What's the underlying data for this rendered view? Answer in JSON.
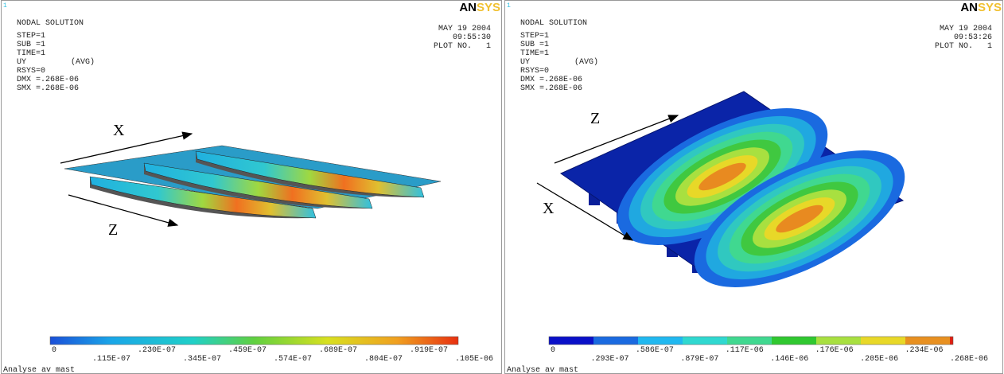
{
  "panels": [
    {
      "window_number": "1",
      "title": "NODAL SOLUTION",
      "lines": [
        "STEP=1",
        "SUB =1",
        "TIME=1"
      ],
      "result": "UY",
      "avg": "(AVG)",
      "lines2": [
        "RSYS=0",
        "DMX =.268E-06",
        "SMX =.268E-06"
      ],
      "logo": {
        "an": "AN",
        "sys": "SYS"
      },
      "date": "MAY 19 2004",
      "time": "09:55:30",
      "plot_no": "PLOT NO.   1",
      "axis_labels": [
        "X",
        "Z"
      ],
      "legend": [
        "0",
        ".115E-07",
        ".230E-07",
        ".345E-07",
        ".459E-07",
        ".574E-07",
        ".689E-07",
        ".804E-07",
        ".919E-07",
        ".105E-06"
      ],
      "footer": "Analyse av mast"
    },
    {
      "window_number": "1",
      "title": "NODAL SOLUTION",
      "lines": [
        "STEP=1",
        "SUB =1",
        "TIME=1"
      ],
      "result": "UY",
      "avg": "(AVG)",
      "lines2": [
        "RSYS=0",
        "DMX =.268E-06",
        "SMX =.268E-06"
      ],
      "logo": {
        "an": "AN",
        "sys": "SYS"
      },
      "date": "MAY 19 2004",
      "time": "09:53:26",
      "plot_no": "PLOT NO.   1",
      "axis_labels": [
        "Z",
        "X"
      ],
      "legend": [
        "0",
        ".293E-07",
        ".586E-07",
        ".879E-07",
        ".117E-06",
        ".146E-06",
        ".176E-06",
        ".205E-06",
        ".234E-06",
        ".268E-06"
      ],
      "footer": "Analyse av mast"
    }
  ]
}
